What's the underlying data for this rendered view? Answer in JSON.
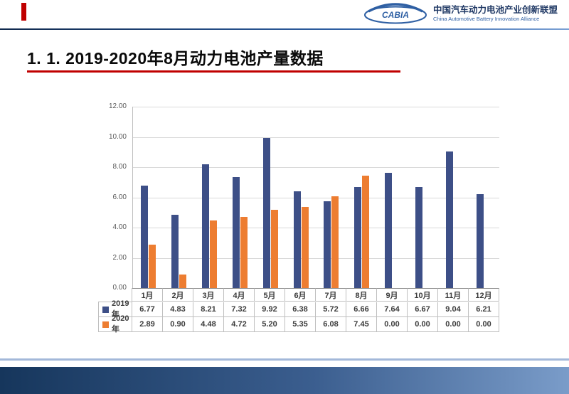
{
  "header": {
    "logo_text": "CABIA",
    "org_cn": "中国汽车动力电池产业创新联盟",
    "org_en": "China Automotive Battery Innovation Alliance"
  },
  "title": "1. 1. 2019-2020年8月动力电池产量数据",
  "chart_data": {
    "type": "bar",
    "title": "",
    "xlabel": "",
    "ylabel": "",
    "categories": [
      "1月",
      "2月",
      "3月",
      "4月",
      "5月",
      "6月",
      "7月",
      "8月",
      "9月",
      "10月",
      "11月",
      "12月"
    ],
    "series": [
      {
        "name": "2019年",
        "color": "#3d4f87",
        "values": [
          6.77,
          4.83,
          8.21,
          7.32,
          9.92,
          6.38,
          5.72,
          6.66,
          7.64,
          6.67,
          9.04,
          6.21
        ]
      },
      {
        "name": "2020年",
        "color": "#ed7d31",
        "values": [
          2.89,
          0.9,
          4.48,
          4.72,
          5.2,
          5.35,
          6.08,
          7.45,
          0.0,
          0.0,
          0.0,
          0.0
        ]
      }
    ],
    "ylim": [
      0,
      12
    ],
    "yticks": [
      0,
      2,
      4,
      6,
      8,
      10,
      12
    ],
    "grid": true,
    "legend_position": "data-table-left",
    "value_format": "0.00"
  },
  "colors": {
    "accent_red": "#c00000",
    "brand_blue": "#2e5fa3",
    "footer_dark": "#16365c"
  }
}
